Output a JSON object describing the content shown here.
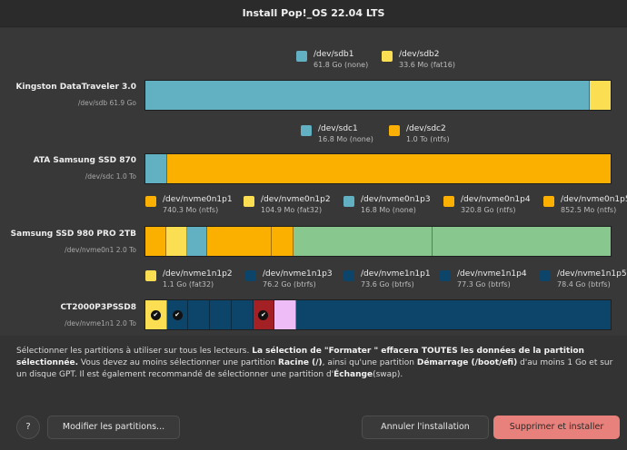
{
  "window": {
    "title": "Install Pop!_OS 22.04 LTS"
  },
  "colors": {
    "teal": "#62b1c3",
    "yellow": "#fbde52",
    "orange": "#fbb000",
    "green": "#88c78d",
    "navy": "#0d4469",
    "red": "#a32024",
    "lavender": "#eebcf6",
    "primary_button": "#e8817b"
  },
  "devices": [
    {
      "name": "Kingston DataTraveler 3.0",
      "path": "/dev/sdb 61.9 Go",
      "partitions": [
        {
          "dev": "/dev/sdb1",
          "info": "61.8 Go (none)",
          "color": "#62b1c3",
          "share": 0.955
        },
        {
          "dev": "/dev/sdb2",
          "info": "33.6 Mo (fat16)",
          "color": "#fbde52",
          "share": 0.045
        }
      ]
    },
    {
      "name": "ATA Samsung SSD 870",
      "path": "/dev/sdc 1.0 To",
      "partitions": [
        {
          "dev": "/dev/sdc1",
          "info": "16.8 Mo (none)",
          "color": "#62b1c3",
          "share": 0.045
        },
        {
          "dev": "/dev/sdc2",
          "info": "1.0 To (ntfs)",
          "color": "#fbb000",
          "share": 0.955
        }
      ]
    },
    {
      "name": "Samsung SSD 980 PRO 2TB",
      "path": "/dev/nvme0n1 2.0 To",
      "partitions": [
        {
          "dev": "/dev/nvme0n1p1",
          "info": "740.3 Mo (ntfs)",
          "color": "#fbb000",
          "share": 0.043
        },
        {
          "dev": "/dev/nvme0n1p2",
          "info": "104.9 Mo (fat32)",
          "color": "#fbde52",
          "share": 0.043
        },
        {
          "dev": "/dev/nvme0n1p3",
          "info": "16.8 Mo (none)",
          "color": "#62b1c3",
          "share": 0.043
        },
        {
          "dev": "/dev/nvme0n1p4",
          "info": "320.8 Go (ntfs)",
          "color": "#fbb000",
          "share": 0.138
        },
        {
          "dev": "/dev/nvme0n1p5",
          "info": "852.5 Mo (ntfs)",
          "color": "#fbb000",
          "share": 0.045
        },
        {
          "dev": "",
          "info": "",
          "color": "#88c78d",
          "share": 0.3
        },
        {
          "dev": "",
          "info": "",
          "color": "#88c78d",
          "share": 0.388
        }
      ]
    },
    {
      "name": "CT2000P3PSSD8",
      "path": "/dev/nvme1n1 2.0 To",
      "partitions": [
        {
          "dev": "/dev/nvme1n1p2",
          "info": "1.1 Go (fat32)",
          "color": "#fbde52",
          "share": 0.045,
          "checked": true
        },
        {
          "dev": "/dev/nvme1n1p3",
          "info": "76.2 Go (btrfs)",
          "color": "#0d4469",
          "share": 0.045,
          "checked": true
        },
        {
          "dev": "/dev/nvme1n1p1",
          "info": "73.6 Go (btrfs)",
          "color": "#0d4469",
          "share": 0.045
        },
        {
          "dev": "/dev/nvme1n1p4",
          "info": "77.3 Go (btrfs)",
          "color": "#0d4469",
          "share": 0.045
        },
        {
          "dev": "/dev/nvme1n1p5",
          "info": "78.4 Go (btrfs)",
          "color": "#0d4469",
          "share": 0.045
        },
        {
          "dev": "",
          "info": "",
          "color": "#a32024",
          "share": 0.045,
          "checked": true
        },
        {
          "dev": "",
          "info": "",
          "color": "#eebcf6",
          "share": 0.045
        },
        {
          "dev": "",
          "info": "",
          "color": "#0d4469",
          "share": 0.685
        }
      ]
    }
  ],
  "info": {
    "p1": "Sélectionner les partitions à utiliser sur tous les lecteurs. ",
    "p1_bold": "La sélection de \"Formater \" effacera TOUTES les données de la partition sélectionnée.",
    "p2": " Vous devez au moins sélectionner une partition ",
    "p2_bold": "Racine (/)",
    "p3": ", ainsi qu'une partition ",
    "p3_bold": "Démarrage (/boot/efi)",
    "p4": " d'au moins 1 Go et sur un disque GPT. Il est également recommandé de sélectionner une partition d'",
    "p4_bold": "Échange",
    "p5": "(swap)."
  },
  "buttons": {
    "help": "?",
    "modify": "Modifier les partitions...",
    "cancel": "Annuler l'installation",
    "confirm": "Supprimer et installer"
  }
}
